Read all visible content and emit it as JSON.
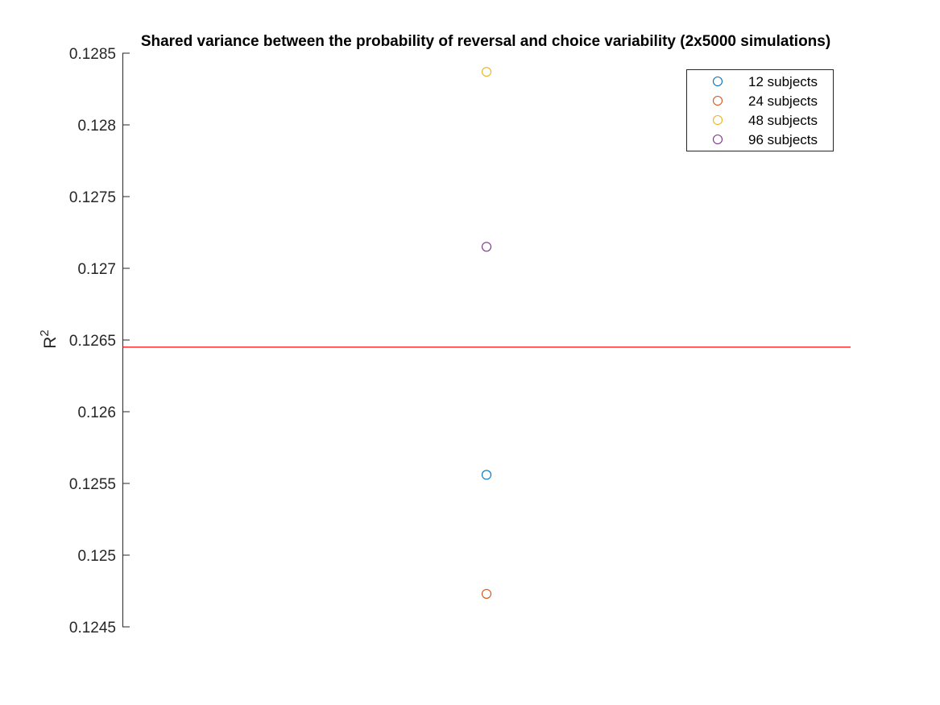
{
  "chart_data": {
    "type": "scatter",
    "title": "Shared variance between the probability of reversal and choice variability (2x5000 simulations)",
    "ylabel": "R",
    "ylabel_superscript": "2",
    "xlabel": "",
    "ylim": [
      0.1245,
      0.1285
    ],
    "yticks": [
      "0.1285",
      "0.128",
      "0.1275",
      "0.127",
      "0.1265",
      "0.126",
      "0.1255",
      "0.125",
      "0.1245"
    ],
    "ytick_values": [
      0.1285,
      0.128,
      0.1275,
      0.127,
      0.1265,
      0.126,
      0.1255,
      0.125,
      0.1245
    ],
    "grid": false,
    "legend_position": "top-right",
    "series": [
      {
        "name": "12 subjects",
        "color": "#0072BD",
        "x": 0.5,
        "y": 0.12556
      },
      {
        "name": "24 subjects",
        "color": "#D95319",
        "x": 0.5,
        "y": 0.12473
      },
      {
        "name": "48 subjects",
        "color": "#EDB120",
        "x": 0.5,
        "y": 0.12837
      },
      {
        "name": "96 subjects",
        "color": "#7E2F8E",
        "x": 0.5,
        "y": 0.12715
      }
    ],
    "reference_line": {
      "y": 0.12645,
      "color": "#FF0000"
    }
  }
}
